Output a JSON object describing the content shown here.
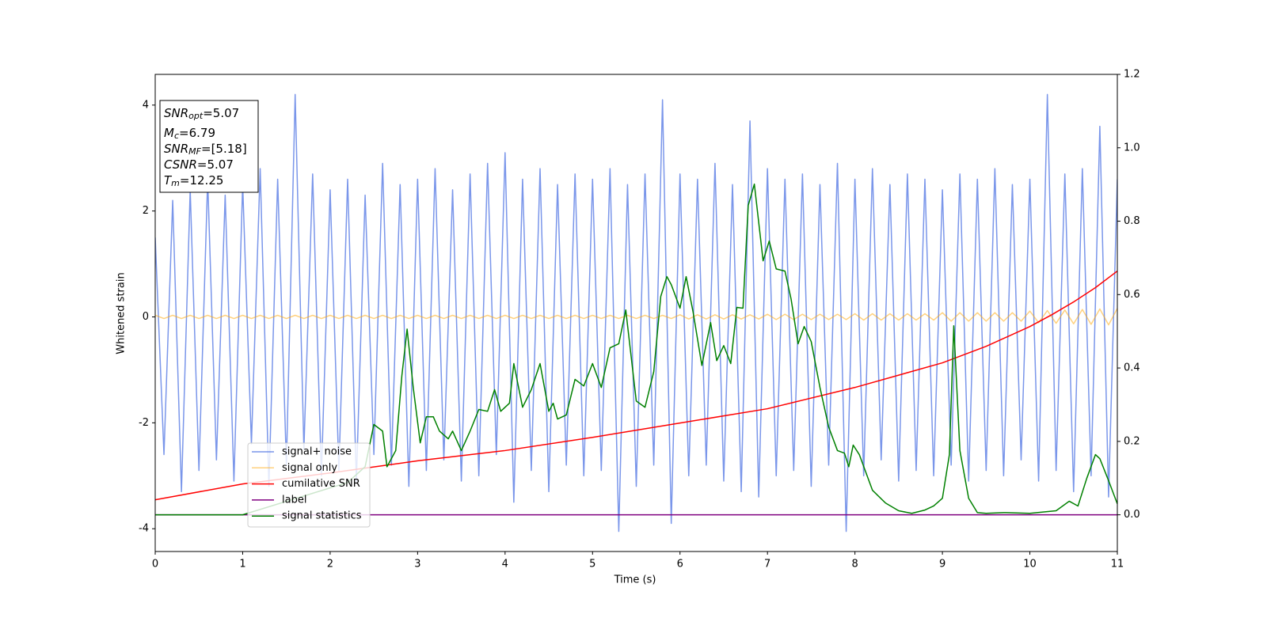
{
  "chart_data": {
    "type": "line",
    "xlabel": "Time (s)",
    "ylabel": "Whitened strain",
    "xlim": [
      0,
      11
    ],
    "xticks": [
      0,
      1,
      2,
      3,
      4,
      5,
      6,
      7,
      8,
      9,
      10,
      11
    ],
    "ylim": [
      -4.43,
      4.58
    ],
    "yticks": [
      -4,
      -2,
      0,
      2,
      4
    ],
    "y2lim": [
      -0.1,
      1.2
    ],
    "y2ticks": [
      {
        "value": 0,
        "label": "0.0"
      },
      {
        "value": 0.2,
        "label": "0.2"
      },
      {
        "value": 0.4,
        "label": "0.4"
      },
      {
        "value": 0.6,
        "label": "0.6"
      },
      {
        "value": 0.8,
        "label": "0.8"
      },
      {
        "value": 1.0,
        "label": "1.0"
      },
      {
        "value": 1.2,
        "label": "1.2"
      }
    ],
    "annotations": [
      {
        "base": "SNR",
        "sub": "opt",
        "text": "=5.07"
      },
      {
        "base": "M",
        "sub": "c",
        "text": "=6.79"
      },
      {
        "base": "SNR",
        "sub": "MF",
        "text": "=[5.18]"
      },
      {
        "base": "CSNR",
        "text": "=5.07"
      },
      {
        "base": "T",
        "sub": "m",
        "text": "=12.25"
      }
    ],
    "series": [
      {
        "name": "signal+ noise",
        "color": "#4169e1",
        "x": [
          0,
          0.1,
          0.2,
          0.3,
          0.4,
          0.5,
          0.6,
          0.7,
          0.8,
          0.9,
          1,
          1.1,
          1.2,
          1.3,
          1.4,
          1.5,
          1.6,
          1.7,
          1.8,
          1.9,
          2,
          2.1,
          2.2,
          2.3,
          2.4,
          2.5,
          2.6,
          2.7,
          2.8,
          2.9,
          3,
          3.1,
          3.2,
          3.3,
          3.4,
          3.5,
          3.6,
          3.7,
          3.8,
          3.9,
          4,
          4.1,
          4.2,
          4.3,
          4.4,
          4.5,
          4.6,
          4.7,
          4.8,
          4.9,
          5,
          5.1,
          5.2,
          5.3,
          5.4,
          5.5,
          5.6,
          5.7,
          5.8,
          5.9,
          6,
          6.1,
          6.2,
          6.3,
          6.4,
          6.5,
          6.6,
          6.7,
          6.8,
          6.9,
          7,
          7.1,
          7.2,
          7.3,
          7.4,
          7.5,
          7.6,
          7.7,
          7.8,
          7.9,
          8,
          8.1,
          8.2,
          8.3,
          8.4,
          8.5,
          8.6,
          8.7,
          8.8,
          8.9,
          9,
          9.1,
          9.2,
          9.3,
          9.4,
          9.5,
          9.6,
          9.7,
          9.8,
          9.9,
          10,
          10.1,
          10.2,
          10.3,
          10.4,
          10.5,
          10.6,
          10.7,
          10.8,
          10.9,
          11
        ],
        "values": [
          1.5,
          -2.6,
          2.2,
          -3.3,
          2.4,
          -2.9,
          2.6,
          -2.7,
          2.3,
          -3.1,
          2.5,
          -2.4,
          2.8,
          -3.2,
          2.6,
          -2.8,
          4.2,
          -2.5,
          2.7,
          -3.0,
          2.4,
          -2.9,
          2.6,
          -3.1,
          2.3,
          -2.6,
          2.9,
          -2.8,
          2.5,
          -3.2,
          2.6,
          -2.9,
          2.8,
          -2.7,
          2.4,
          -3.1,
          2.7,
          -3.0,
          2.9,
          -2.6,
          3.1,
          -3.5,
          2.6,
          -2.9,
          2.8,
          -3.3,
          2.5,
          -2.8,
          2.7,
          -3.0,
          2.6,
          -2.9,
          2.8,
          -4.05,
          2.5,
          -3.2,
          2.7,
          -2.8,
          4.1,
          -3.9,
          2.7,
          -3.0,
          2.6,
          -2.8,
          2.9,
          -3.1,
          2.5,
          -3.3,
          3.7,
          -3.4,
          2.8,
          -3.0,
          2.6,
          -2.9,
          2.7,
          -3.2,
          2.5,
          -2.8,
          2.9,
          -4.05,
          2.6,
          -3.0,
          2.8,
          -2.7,
          2.5,
          -3.1,
          2.7,
          -2.9,
          2.6,
          -3.0,
          2.4,
          -2.8,
          2.7,
          -3.1,
          2.6,
          -2.9,
          2.8,
          -3.0,
          2.5,
          -2.7,
          2.6,
          -3.1,
          4.2,
          -2.9,
          2.7,
          -3.3,
          2.8,
          -3.0,
          3.6,
          -3.4,
          2.6
        ]
      },
      {
        "name": "signal only",
        "color": "#ffa500",
        "x": [
          0,
          0.1,
          0.2,
          0.3,
          0.4,
          0.5,
          0.6,
          0.7,
          0.8,
          0.9,
          1,
          1.1,
          1.2,
          1.3,
          1.4,
          1.5,
          1.6,
          1.7,
          1.8,
          1.9,
          2,
          2.1,
          2.2,
          2.3,
          2.4,
          2.5,
          2.6,
          2.7,
          2.8,
          2.9,
          3,
          3.1,
          3.2,
          3.3,
          3.4,
          3.5,
          3.6,
          3.7,
          3.8,
          3.9,
          4,
          4.1,
          4.2,
          4.3,
          4.4,
          4.5,
          4.6,
          4.7,
          4.8,
          4.9,
          5,
          5.1,
          5.2,
          5.3,
          5.4,
          5.5,
          5.6,
          5.7,
          5.8,
          5.9,
          6,
          6.1,
          6.2,
          6.3,
          6.4,
          6.5,
          6.6,
          6.7,
          6.8,
          6.9,
          7,
          7.1,
          7.2,
          7.3,
          7.4,
          7.5,
          7.6,
          7.7,
          7.8,
          7.9,
          8,
          8.1,
          8.2,
          8.3,
          8.4,
          8.5,
          8.6,
          8.7,
          8.8,
          8.9,
          9,
          9.1,
          9.2,
          9.3,
          9.4,
          9.5,
          9.6,
          9.7,
          9.8,
          9.9,
          10,
          10.1,
          10.2,
          10.3,
          10.4,
          10.5,
          10.6,
          10.7,
          10.8,
          10.9,
          11
        ],
        "values": [
          0.03,
          -0.03,
          0.03,
          -0.03,
          0.03,
          -0.03,
          0.03,
          -0.03,
          0.03,
          -0.03,
          0.03,
          -0.03,
          0.03,
          -0.03,
          0.03,
          -0.03,
          0.03,
          -0.03,
          0.03,
          -0.03,
          0.03,
          -0.03,
          0.03,
          -0.03,
          0.03,
          -0.03,
          0.03,
          -0.03,
          0.03,
          -0.03,
          0.03,
          -0.03,
          0.03,
          -0.03,
          0.03,
          -0.03,
          0.03,
          -0.03,
          0.03,
          -0.03,
          0.03,
          -0.03,
          0.03,
          -0.03,
          0.03,
          -0.03,
          0.03,
          -0.03,
          0.03,
          -0.03,
          0.03,
          -0.03,
          0.03,
          -0.03,
          0.03,
          -0.03,
          0.03,
          -0.03,
          0.03,
          -0.03,
          0.04,
          -0.04,
          0.04,
          -0.04,
          0.04,
          -0.04,
          0.04,
          -0.04,
          0.04,
          -0.04,
          0.05,
          -0.05,
          0.05,
          -0.05,
          0.05,
          -0.05,
          0.05,
          -0.05,
          0.05,
          -0.05,
          0.06,
          -0.06,
          0.06,
          -0.06,
          0.06,
          -0.06,
          0.06,
          -0.06,
          0.06,
          -0.06,
          0.08,
          -0.08,
          0.08,
          -0.08,
          0.08,
          -0.08,
          0.08,
          -0.08,
          0.08,
          -0.08,
          0.11,
          -0.11,
          0.12,
          -0.12,
          0.13,
          -0.13,
          0.14,
          -0.14,
          0.15,
          -0.15,
          0.16
        ]
      },
      {
        "name": "cumilative SNR",
        "color": "#ff0000",
        "axis": "y2",
        "x": [
          0,
          1,
          2,
          3,
          4,
          5,
          6,
          7,
          8,
          9,
          9.5,
          10,
          10.25,
          10.5,
          10.75,
          11
        ],
        "values": [
          0.041,
          0.084,
          0.114,
          0.147,
          0.175,
          0.211,
          0.25,
          0.289,
          0.347,
          0.414,
          0.459,
          0.513,
          0.545,
          0.58,
          0.619,
          0.664
        ]
      },
      {
        "name": "label",
        "color": "#800080",
        "axis": "y2",
        "x": [
          0,
          11
        ],
        "values": [
          0,
          0
        ]
      },
      {
        "name": "signal statistics",
        "color": "#008000",
        "axis": "y2",
        "x": [
          0,
          1,
          2.2,
          2.4,
          2.5,
          2.6,
          2.65,
          2.75,
          2.82,
          2.88,
          2.95,
          3.03,
          3.1,
          3.18,
          3.25,
          3.35,
          3.4,
          3.5,
          3.6,
          3.7,
          3.8,
          3.88,
          3.95,
          4.05,
          4.1,
          4.2,
          4.3,
          4.4,
          4.5,
          4.55,
          4.6,
          4.7,
          4.8,
          4.9,
          5.0,
          5.1,
          5.2,
          5.3,
          5.38,
          5.5,
          5.6,
          5.7,
          5.78,
          5.85,
          5.9,
          6.0,
          6.07,
          6.15,
          6.25,
          6.35,
          6.42,
          6.5,
          6.58,
          6.65,
          6.72,
          6.78,
          6.85,
          6.95,
          7.02,
          7.1,
          7.2,
          7.27,
          7.35,
          7.42,
          7.5,
          7.6,
          7.7,
          7.8,
          7.88,
          7.93,
          7.98,
          8.05,
          8.2,
          8.35,
          8.5,
          8.65,
          8.8,
          8.9,
          9.0,
          9.08,
          9.13,
          9.2,
          9.3,
          9.4,
          9.5,
          9.7,
          10.0,
          10.3,
          10.45,
          10.55,
          10.65,
          10.75,
          10.8,
          10.9,
          11.0
        ],
        "values": [
          0,
          0,
          0.088,
          0.131,
          0.246,
          0.228,
          0.131,
          0.175,
          0.379,
          0.506,
          0.347,
          0.196,
          0.267,
          0.267,
          0.228,
          0.207,
          0.228,
          0.175,
          0.228,
          0.287,
          0.282,
          0.341,
          0.282,
          0.304,
          0.412,
          0.293,
          0.341,
          0.412,
          0.282,
          0.304,
          0.261,
          0.272,
          0.369,
          0.351,
          0.412,
          0.347,
          0.455,
          0.466,
          0.558,
          0.31,
          0.293,
          0.39,
          0.595,
          0.649,
          0.627,
          0.563,
          0.649,
          0.552,
          0.407,
          0.524,
          0.42,
          0.461,
          0.412,
          0.565,
          0.563,
          0.843,
          0.901,
          0.692,
          0.746,
          0.67,
          0.664,
          0.588,
          0.466,
          0.513,
          0.472,
          0.347,
          0.239,
          0.175,
          0.168,
          0.131,
          0.19,
          0.164,
          0.067,
          0.032,
          0.011,
          0.004,
          0.013,
          0.024,
          0.045,
          0.164,
          0.515,
          0.175,
          0.045,
          0.006,
          0.004,
          0.006,
          0.004,
          0.011,
          0.037,
          0.024,
          0.099,
          0.164,
          0.153,
          0.093,
          0.03
        ]
      }
    ]
  }
}
